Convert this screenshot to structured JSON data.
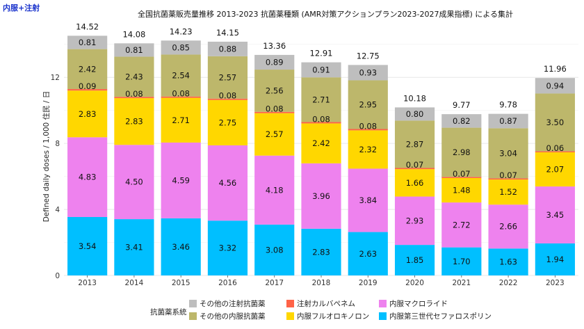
{
  "corner_label": "内服+注射",
  "chart_data": {
    "type": "bar",
    "stacked": true,
    "title": "全国抗菌薬販売量推移 2013-2023 抗菌薬種類 (AMR対策アクションプラン2023-2027成果指標) による集計",
    "xlabel": "",
    "ylabel": "Defined daily doses / 1,000 住民 / 日",
    "ylim": [
      0,
      15
    ],
    "yticks": [
      0,
      4,
      8,
      12
    ],
    "grid": true,
    "categories": [
      "2013",
      "2014",
      "2015",
      "2016",
      "2017",
      "2018",
      "2019",
      "2020",
      "2021",
      "2022",
      "2023"
    ],
    "totals": [
      "14.52",
      "14.08",
      "14.23",
      "14.15",
      "13.36",
      "12.91",
      "12.75",
      "10.18",
      "9.77",
      "9.78",
      "11.96"
    ],
    "series": [
      {
        "name": "内服第三世代セファロスポリン",
        "color": "#00bfff",
        "values": [
          3.54,
          3.41,
          3.46,
          3.32,
          3.08,
          2.83,
          2.63,
          1.85,
          1.7,
          1.63,
          1.94
        ],
        "labels": [
          "3.54",
          "3.41",
          "3.46",
          "3.32",
          "3.08",
          "2.83",
          "2.63",
          "1.85",
          "1.70",
          "1.63",
          "1.94"
        ]
      },
      {
        "name": "内服マクロライド",
        "color": "#ee82ee",
        "values": [
          4.83,
          4.5,
          4.59,
          4.56,
          4.18,
          3.96,
          3.84,
          2.93,
          2.72,
          2.66,
          3.45
        ],
        "labels": [
          "4.83",
          "4.50",
          "4.59",
          "4.56",
          "4.18",
          "3.96",
          "3.84",
          "2.93",
          "2.72",
          "2.66",
          "3.45"
        ]
      },
      {
        "name": "内服フルオロキノロン",
        "color": "#ffd700",
        "values": [
          2.83,
          2.83,
          2.71,
          2.75,
          2.57,
          2.42,
          2.32,
          1.66,
          1.48,
          1.52,
          2.07
        ],
        "labels": [
          "2.83",
          "2.83",
          "2.71",
          "2.75",
          "2.57",
          "2.42",
          "2.32",
          "1.66",
          "1.48",
          "1.52",
          "2.07"
        ]
      },
      {
        "name": "注射カルバペネム",
        "color": "#ff6347",
        "values": [
          0.09,
          0.08,
          0.08,
          0.08,
          0.08,
          0.08,
          0.08,
          0.07,
          0.07,
          0.07,
          0.06
        ],
        "labels": [
          "0.09",
          "0.08",
          "0.08",
          "0.08",
          "0.08",
          "0.08",
          "0.08",
          "0.07",
          "0.07",
          "0.07",
          "0.06"
        ]
      },
      {
        "name": "その他の内服抗菌薬",
        "color": "#bdb76b",
        "values": [
          2.42,
          2.43,
          2.54,
          2.57,
          2.56,
          2.71,
          2.95,
          2.87,
          2.98,
          3.04,
          3.5
        ],
        "labels": [
          "2.42",
          "2.43",
          "2.54",
          "2.57",
          "2.56",
          "2.71",
          "2.95",
          "2.87",
          "2.98",
          "3.04",
          "3.50"
        ]
      },
      {
        "name": "その他の注射抗菌薬",
        "color": "#bebebe",
        "values": [
          0.81,
          0.81,
          0.85,
          0.88,
          0.89,
          0.91,
          0.93,
          0.8,
          0.82,
          0.87,
          0.94
        ],
        "labels": [
          "0.81",
          "0.81",
          "0.85",
          "0.88",
          "0.89",
          "0.91",
          "0.93",
          "0.80",
          "0.82",
          "0.87",
          "0.94"
        ]
      }
    ],
    "legend": {
      "title": "抗菌薬系統",
      "position": "bottom",
      "order": [
        "その他の注射抗菌薬",
        "その他の内服抗菌薬",
        "注射カルバペネム",
        "内服フルオロキノロン",
        "内服マクロライド",
        "内服第三世代セファロスポリン"
      ]
    }
  }
}
